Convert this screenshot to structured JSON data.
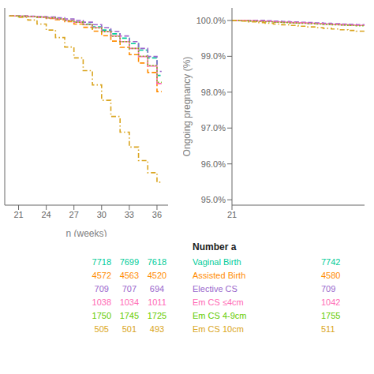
{
  "chart_data": [
    {
      "type": "step",
      "x_label": "n (weeks)",
      "x": [
        20,
        21,
        22,
        23,
        24,
        25,
        26,
        27,
        28,
        29,
        30,
        31,
        32,
        33,
        34,
        35,
        36,
        36.5
      ],
      "xlim": [
        19.5,
        37.2
      ],
      "xticks": [
        21,
        24,
        27,
        30,
        33,
        36
      ],
      "ylim": [
        30,
        103
      ],
      "tick_labels": "x",
      "series": [
        {
          "color": "#00CC99",
          "line_style": "dashed",
          "values": [
            100,
            99.9,
            99.8,
            99.6,
            99.3,
            98.9,
            98.4,
            97.8,
            97.0,
            96.0,
            94.8,
            93.4,
            91.8,
            89.8,
            87.4,
            84.5,
            78.0,
            78.0
          ]
        },
        {
          "color": "#FF8C00",
          "line_style": "dashed",
          "values": [
            100,
            99.9,
            99.7,
            99.5,
            99.1,
            98.6,
            97.9,
            97.0,
            95.8,
            94.4,
            92.7,
            90.7,
            88.4,
            85.7,
            82.6,
            79.1,
            72.0,
            72.0
          ]
        },
        {
          "color": "#9966CC",
          "line_style": "dashed",
          "values": [
            100,
            100.0,
            99.9,
            99.8,
            99.6,
            99.3,
            98.9,
            98.4,
            97.7,
            96.8,
            95.7,
            94.3,
            92.6,
            90.5,
            88.0,
            85.0,
            79.5,
            79.5
          ]
        },
        {
          "color": "#FF69B4",
          "line_style": "solid",
          "values": [
            100,
            99.9,
            99.8,
            99.6,
            99.3,
            98.9,
            98.4,
            97.7,
            96.8,
            95.7,
            94.3,
            92.6,
            90.5,
            88.0,
            85.0,
            81.5,
            75.0,
            75.0
          ]
        },
        {
          "color": "#66CC00",
          "line_style": "dotted",
          "values": [
            100,
            99.9,
            99.8,
            99.6,
            99.3,
            98.9,
            98.4,
            97.7,
            96.8,
            95.6,
            94.2,
            92.5,
            90.5,
            88.0,
            85.1,
            81.7,
            75.5,
            75.5
          ]
        },
        {
          "color": "#DAA520",
          "line_style": "dashdot",
          "values": [
            100,
            99.5,
            98.5,
            97.0,
            94.8,
            92.0,
            88.5,
            84.5,
            79.8,
            74.5,
            68.8,
            62.8,
            57.0,
            51.5,
            46.5,
            42.0,
            38.5,
            38.5
          ]
        }
      ],
      "table": {
        "x": [
          30,
          33,
          36
        ],
        "rows": [
          [
            7718,
            7699,
            7618
          ],
          [
            4572,
            4563,
            4520
          ],
          [
            709,
            707,
            694
          ],
          [
            1038,
            1034,
            1011
          ],
          [
            1750,
            1745,
            1725
          ],
          [
            505,
            501,
            493
          ]
        ]
      }
    },
    {
      "type": "step",
      "y_label": "Ongoing pregnancy (%)",
      "x": [
        21,
        22,
        23,
        24,
        25,
        26,
        27,
        28,
        29,
        30,
        31,
        32,
        33,
        34,
        35,
        36,
        37
      ],
      "xlim": [
        21,
        37
      ],
      "xticks": [
        21
      ],
      "ylim": [
        94.85,
        100.35
      ],
      "yticks": [
        {
          "value": 95.0,
          "label": "95.0%"
        },
        {
          "value": 96.0,
          "label": "96.0%"
        },
        {
          "value": 97.0,
          "label": "97.0%"
        },
        {
          "value": 98.0,
          "label": "98.0%"
        },
        {
          "value": 99.0,
          "label": "99.0%"
        },
        {
          "value": 100.0,
          "label": "100.0%"
        }
      ],
      "series": [
        {
          "name": "Vaginal Birth",
          "color": "#00CC99",
          "line_style": "dashed",
          "values": [
            100.0,
            100.0,
            99.99,
            99.98,
            99.97,
            99.96,
            99.95,
            99.94,
            99.93,
            99.92,
            99.91,
            99.9,
            99.89,
            99.88,
            99.87,
            99.86,
            99.85
          ]
        },
        {
          "name": "Assisted Birth",
          "color": "#FF8C00",
          "line_style": "dashed",
          "values": [
            100.0,
            100.0,
            99.99,
            99.98,
            99.97,
            99.96,
            99.95,
            99.94,
            99.93,
            99.92,
            99.91,
            99.9,
            99.89,
            99.88,
            99.87,
            99.86,
            99.85
          ]
        },
        {
          "name": "Elective CS",
          "color": "#9966CC",
          "line_style": "dashed",
          "values": [
            100.0,
            100.0,
            100.0,
            100.0,
            99.99,
            99.98,
            99.97,
            99.96,
            99.95,
            99.94,
            99.93,
            99.92,
            99.91,
            99.9,
            99.89,
            99.88,
            99.87
          ]
        },
        {
          "name": "Em CS ≤4cm",
          "color": "#FF69B4",
          "line_style": "solid",
          "values": [
            100.0,
            100.0,
            99.99,
            99.98,
            99.97,
            99.96,
            99.95,
            99.94,
            99.93,
            99.92,
            99.91,
            99.9,
            99.89,
            99.88,
            99.87,
            99.86,
            99.85
          ]
        },
        {
          "name": "Em CS 4-9cm",
          "color": "#66CC00",
          "line_style": "dotted",
          "values": [
            100.0,
            99.99,
            99.98,
            99.97,
            99.96,
            99.95,
            99.94,
            99.93,
            99.92,
            99.91,
            99.9,
            99.89,
            99.88,
            99.87,
            99.86,
            99.85,
            99.84
          ]
        },
        {
          "name": "Em CS 10cm",
          "color": "#DAA520",
          "line_style": "dashdot",
          "values": [
            100.0,
            99.98,
            99.96,
            99.94,
            99.92,
            99.9,
            99.88,
            99.86,
            99.84,
            99.82,
            99.8,
            99.78,
            99.76,
            99.74,
            99.72,
            99.7,
            99.68
          ]
        }
      ],
      "table": {
        "title": "Number a",
        "values": [
          7742,
          4580,
          709,
          1042,
          1755,
          511
        ]
      }
    }
  ]
}
